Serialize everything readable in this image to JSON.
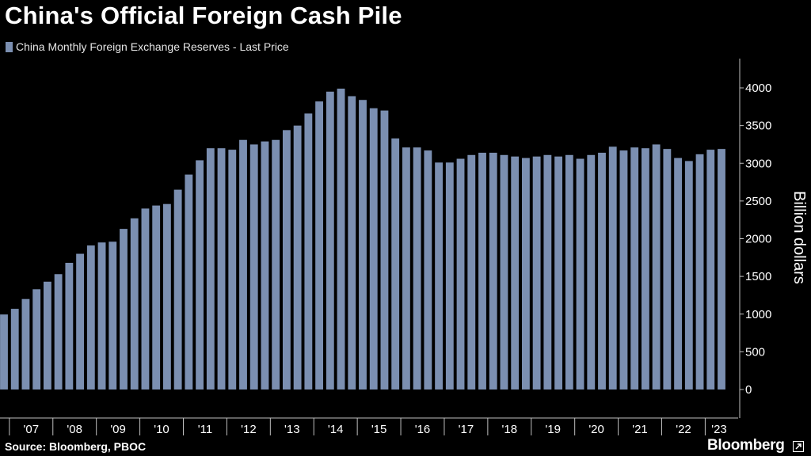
{
  "title": "China's Official Foreign Cash Pile",
  "legend": {
    "label": "China Monthly Foreign Exchange Reserves - Last Price"
  },
  "source": "Source: Bloomberg, PBOC",
  "brand": "Bloomberg",
  "brand_icon": "external-link-icon",
  "colors": {
    "bar": "#7b8fb1",
    "background": "#000000",
    "text": "#ffffff",
    "axis": "#bfbfbf"
  },
  "chart_data": {
    "type": "bar",
    "title": "China's Official Foreign Cash Pile",
    "xlabel": "",
    "ylabel": "Billion dollars",
    "ylim": [
      -400,
      4300
    ],
    "yticks": [
      0,
      500,
      1000,
      1500,
      2000,
      2500,
      3000,
      3500,
      4000
    ],
    "grid": false,
    "legend_position": "top-left",
    "series": [
      {
        "name": "China Monthly Foreign Exchange Reserves - Last Price",
        "quarter_dates": [
          "2006-12",
          "2007-03",
          "2007-06",
          "2007-09",
          "2007-12",
          "2008-03",
          "2008-06",
          "2008-09",
          "2008-12",
          "2009-03",
          "2009-06",
          "2009-09",
          "2009-12",
          "2010-03",
          "2010-06",
          "2010-09",
          "2010-12",
          "2011-03",
          "2011-06",
          "2011-09",
          "2011-12",
          "2012-03",
          "2012-06",
          "2012-09",
          "2012-12",
          "2013-03",
          "2013-06",
          "2013-09",
          "2013-12",
          "2014-03",
          "2014-06",
          "2014-09",
          "2014-12",
          "2015-03",
          "2015-06",
          "2015-09",
          "2015-12",
          "2016-03",
          "2016-06",
          "2016-09",
          "2016-12",
          "2017-03",
          "2017-06",
          "2017-09",
          "2017-12",
          "2018-03",
          "2018-06",
          "2018-09",
          "2018-12",
          "2019-03",
          "2019-06",
          "2019-09",
          "2019-12",
          "2020-03",
          "2020-06",
          "2020-09",
          "2020-12",
          "2021-03",
          "2021-06",
          "2021-09",
          "2021-12",
          "2022-03",
          "2022-06",
          "2022-09",
          "2022-12",
          "2023-03",
          "2023-06"
        ],
        "values": [
          995,
          1070,
          1200,
          1330,
          1430,
          1530,
          1680,
          1800,
          1910,
          1950,
          1960,
          2130,
          2270,
          2400,
          2440,
          2460,
          2650,
          2850,
          3040,
          3200,
          3200,
          3180,
          3310,
          3250,
          3290,
          3310,
          3440,
          3500,
          3660,
          3820,
          3950,
          3990,
          3890,
          3840,
          3730,
          3700,
          3330,
          3210,
          3210,
          3170,
          3010,
          3010,
          3060,
          3110,
          3140,
          3140,
          3110,
          3090,
          3070,
          3090,
          3110,
          3090,
          3110,
          3060,
          3110,
          3140,
          3220,
          3170,
          3210,
          3200,
          3250,
          3190,
          3070,
          3030,
          3120,
          3180,
          3190
        ]
      }
    ],
    "x_tick_labels": [
      "'07",
      "'08",
      "'09",
      "'10",
      "'11",
      "'12",
      "'13",
      "'14",
      "'15",
      "'16",
      "'17",
      "'18",
      "'19",
      "'20",
      "'21",
      "'22",
      "'23"
    ]
  }
}
